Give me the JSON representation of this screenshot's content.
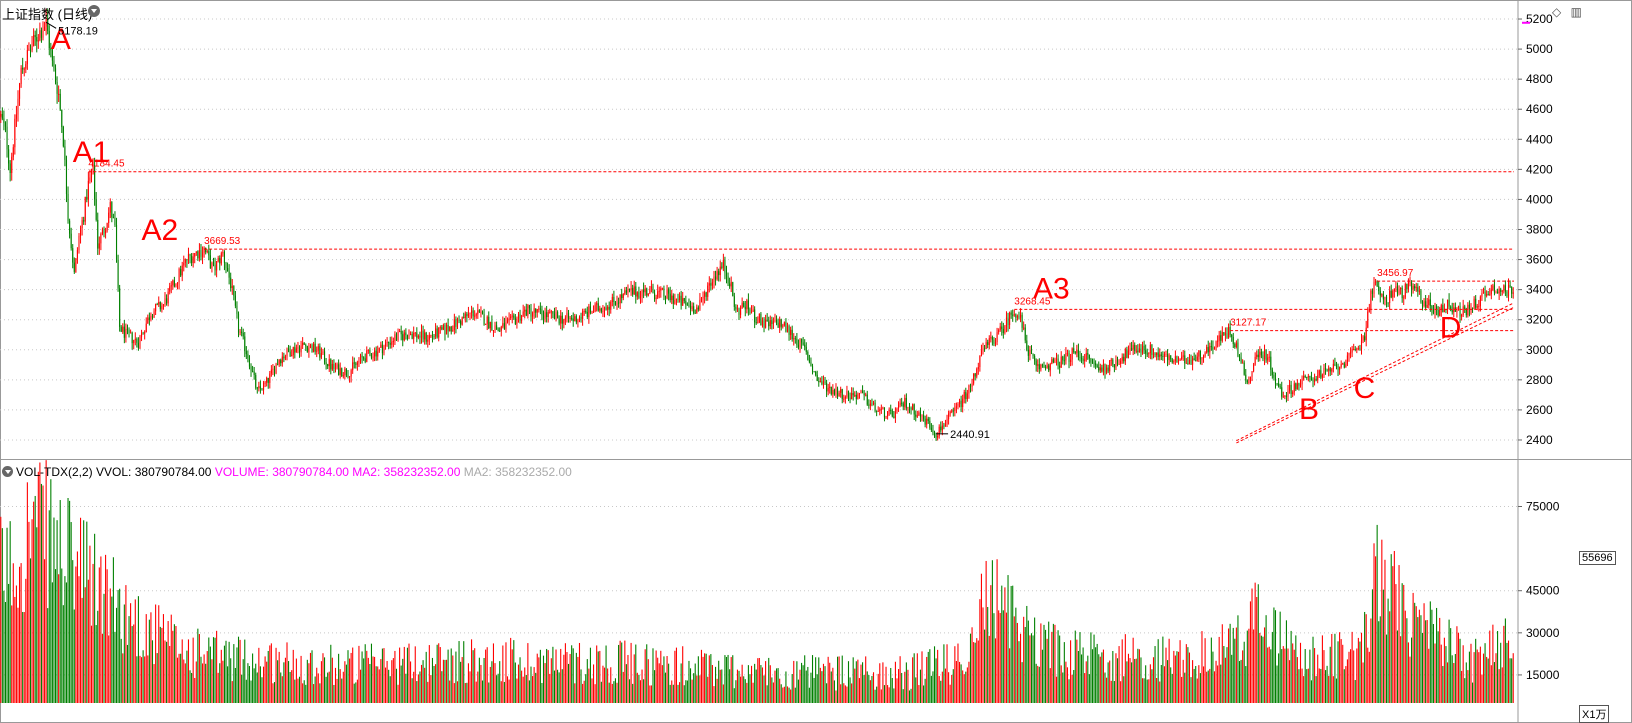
{
  "header": {
    "title": "上证指数 (日线)",
    "corner_icons": [
      "diamond-icon",
      "panel-toggle-icon"
    ]
  },
  "volume_header": {
    "indicator": "VOL-TDX(2,2)",
    "vvol_label": "VVOL:",
    "vvol_value": "380790784.00",
    "volume_label": "VOLUME:",
    "volume_value": "380790784.00",
    "ma2_label": "MA2:",
    "ma2_value": "358232352.00",
    "ma2b_label": "MA2:",
    "ma2b_value": "358232352.00"
  },
  "volume_current_box": "55696",
  "volume_unit_box": "X1万",
  "colors": {
    "up": "#ff0000",
    "down": "#008000",
    "annotation": "#ff0000",
    "grid": "#c8c8c8",
    "magenta": "#ff00ff"
  },
  "chart_data": [
    {
      "type": "candlestick",
      "title": "",
      "ylim": [
        2320,
        5260
      ],
      "y_ticks": [
        2400,
        2600,
        2800,
        3000,
        3200,
        3400,
        3600,
        3800,
        4000,
        4200,
        4400,
        4600,
        4800,
        5000,
        5200
      ],
      "grid": true,
      "y_axis_side": "right",
      "path_points": [
        {
          "i": 0,
          "v": 4550
        },
        {
          "i": 3,
          "v": 4450
        },
        {
          "i": 6,
          "v": 4200
        },
        {
          "i": 9,
          "v": 4480
        },
        {
          "i": 13,
          "v": 4850
        },
        {
          "i": 18,
          "v": 4980
        },
        {
          "i": 24,
          "v": 5100
        },
        {
          "i": 29,
          "v": 5178
        },
        {
          "i": 33,
          "v": 4900
        },
        {
          "i": 37,
          "v": 4700
        },
        {
          "i": 40,
          "v": 4400
        },
        {
          "i": 43,
          "v": 3900
        },
        {
          "i": 47,
          "v": 3500
        },
        {
          "i": 50,
          "v": 3750
        },
        {
          "i": 53,
          "v": 3900
        },
        {
          "i": 56,
          "v": 4100
        },
        {
          "i": 59,
          "v": 4184
        },
        {
          "i": 62,
          "v": 3700
        },
        {
          "i": 66,
          "v": 3800
        },
        {
          "i": 70,
          "v": 3950
        },
        {
          "i": 73,
          "v": 3800
        },
        {
          "i": 76,
          "v": 3150
        },
        {
          "i": 80,
          "v": 3100
        },
        {
          "i": 88,
          "v": 3050
        },
        {
          "i": 96,
          "v": 3250
        },
        {
          "i": 104,
          "v": 3300
        },
        {
          "i": 112,
          "v": 3460
        },
        {
          "i": 119,
          "v": 3600
        },
        {
          "i": 124,
          "v": 3640
        },
        {
          "i": 130,
          "v": 3669
        },
        {
          "i": 136,
          "v": 3530
        },
        {
          "i": 142,
          "v": 3640
        },
        {
          "i": 147,
          "v": 3440
        },
        {
          "i": 152,
          "v": 3140
        },
        {
          "i": 158,
          "v": 2960
        },
        {
          "i": 164,
          "v": 2720
        },
        {
          "i": 170,
          "v": 2780
        },
        {
          "i": 178,
          "v": 2940
        },
        {
          "i": 186,
          "v": 3000
        },
        {
          "i": 194,
          "v": 3030
        },
        {
          "i": 202,
          "v": 3000
        },
        {
          "i": 212,
          "v": 2880
        },
        {
          "i": 222,
          "v": 2850
        },
        {
          "i": 232,
          "v": 2950
        },
        {
          "i": 242,
          "v": 3000
        },
        {
          "i": 252,
          "v": 3080
        },
        {
          "i": 262,
          "v": 3110
        },
        {
          "i": 272,
          "v": 3080
        },
        {
          "i": 282,
          "v": 3120
        },
        {
          "i": 292,
          "v": 3180
        },
        {
          "i": 302,
          "v": 3250
        },
        {
          "i": 310,
          "v": 3200
        },
        {
          "i": 318,
          "v": 3130
        },
        {
          "i": 326,
          "v": 3180
        },
        {
          "i": 336,
          "v": 3260
        },
        {
          "i": 346,
          "v": 3240
        },
        {
          "i": 356,
          "v": 3210
        },
        {
          "i": 366,
          "v": 3200
        },
        {
          "i": 378,
          "v": 3260
        },
        {
          "i": 390,
          "v": 3310
        },
        {
          "i": 402,
          "v": 3380
        },
        {
          "i": 414,
          "v": 3390
        },
        {
          "i": 426,
          "v": 3360
        },
        {
          "i": 438,
          "v": 3300
        },
        {
          "i": 446,
          "v": 3270
        },
        {
          "i": 452,
          "v": 3420
        },
        {
          "i": 458,
          "v": 3520
        },
        {
          "i": 462,
          "v": 3560
        },
        {
          "i": 466,
          "v": 3460
        },
        {
          "i": 470,
          "v": 3250
        },
        {
          "i": 476,
          "v": 3300
        },
        {
          "i": 482,
          "v": 3220
        },
        {
          "i": 490,
          "v": 3160
        },
        {
          "i": 498,
          "v": 3180
        },
        {
          "i": 506,
          "v": 3100
        },
        {
          "i": 514,
          "v": 3000
        },
        {
          "i": 522,
          "v": 2800
        },
        {
          "i": 530,
          "v": 2740
        },
        {
          "i": 540,
          "v": 2700
        },
        {
          "i": 550,
          "v": 2700
        },
        {
          "i": 560,
          "v": 2600
        },
        {
          "i": 570,
          "v": 2560
        },
        {
          "i": 578,
          "v": 2650
        },
        {
          "i": 586,
          "v": 2580
        },
        {
          "i": 594,
          "v": 2500
        },
        {
          "i": 598,
          "v": 2441
        },
        {
          "i": 604,
          "v": 2520
        },
        {
          "i": 612,
          "v": 2620
        },
        {
          "i": 620,
          "v": 2750
        },
        {
          "i": 626,
          "v": 2950
        },
        {
          "i": 632,
          "v": 3050
        },
        {
          "i": 638,
          "v": 3100
        },
        {
          "i": 644,
          "v": 3200
        },
        {
          "i": 648,
          "v": 3268
        },
        {
          "i": 652,
          "v": 3200
        },
        {
          "i": 656,
          "v": 3020
        },
        {
          "i": 662,
          "v": 2880
        },
        {
          "i": 670,
          "v": 2900
        },
        {
          "i": 678,
          "v": 2920
        },
        {
          "i": 686,
          "v": 2980
        },
        {
          "i": 694,
          "v": 2950
        },
        {
          "i": 702,
          "v": 2870
        },
        {
          "i": 710,
          "v": 2900
        },
        {
          "i": 718,
          "v": 2960
        },
        {
          "i": 726,
          "v": 3010
        },
        {
          "i": 734,
          "v": 3000
        },
        {
          "i": 742,
          "v": 2960
        },
        {
          "i": 752,
          "v": 2920
        },
        {
          "i": 762,
          "v": 2940
        },
        {
          "i": 772,
          "v": 3000
        },
        {
          "i": 780,
          "v": 3080
        },
        {
          "i": 786,
          "v": 3127
        },
        {
          "i": 790,
          "v": 3020
        },
        {
          "i": 794,
          "v": 2880
        },
        {
          "i": 798,
          "v": 2780
        },
        {
          "i": 802,
          "v": 2950
        },
        {
          "i": 808,
          "v": 2980
        },
        {
          "i": 812,
          "v": 2900
        },
        {
          "i": 816,
          "v": 2760
        },
        {
          "i": 820,
          "v": 2700
        },
        {
          "i": 826,
          "v": 2750
        },
        {
          "i": 834,
          "v": 2800
        },
        {
          "i": 842,
          "v": 2830
        },
        {
          "i": 850,
          "v": 2860
        },
        {
          "i": 856,
          "v": 2900
        },
        {
          "i": 862,
          "v": 2940
        },
        {
          "i": 868,
          "v": 3020
        },
        {
          "i": 872,
          "v": 3100
        },
        {
          "i": 876,
          "v": 3380
        },
        {
          "i": 880,
          "v": 3440
        },
        {
          "i": 884,
          "v": 3300
        },
        {
          "i": 890,
          "v": 3400
        },
        {
          "i": 896,
          "v": 3380
        },
        {
          "i": 902,
          "v": 3420
        },
        {
          "i": 910,
          "v": 3320
        },
        {
          "i": 918,
          "v": 3260
        },
        {
          "i": 926,
          "v": 3300
        },
        {
          "i": 934,
          "v": 3240
        },
        {
          "i": 942,
          "v": 3300
        },
        {
          "i": 950,
          "v": 3380
        },
        {
          "i": 956,
          "v": 3420
        },
        {
          "i": 962,
          "v": 3380
        },
        {
          "i": 967,
          "v": 3420
        }
      ],
      "n_bars": 968,
      "max_label": "5178.19",
      "min_label": "2440.91",
      "price_labels": [
        {
          "text": "4184.45",
          "value": 4184.45,
          "i": 56
        },
        {
          "text": "3669.53",
          "value": 3669.53,
          "i": 130
        },
        {
          "text": "3268.45",
          "value": 3268.45,
          "i": 648
        },
        {
          "text": "3127.17",
          "value": 3127.17,
          "i": 786
        },
        {
          "text": "3456.97",
          "value": 3456.97,
          "i": 880
        }
      ],
      "point_annotations": [
        {
          "text": "A",
          "i": 32,
          "value": 5000
        },
        {
          "text": "A1",
          "i": 46,
          "value": 4250
        },
        {
          "text": "A2",
          "i": 90,
          "value": 3730
        },
        {
          "text": "A3",
          "i": 660,
          "value": 3340
        },
        {
          "text": "B",
          "i": 830,
          "value": 2540
        },
        {
          "text": "C",
          "i": 865,
          "value": 2680
        },
        {
          "text": "D",
          "i": 920,
          "value": 3080
        }
      ],
      "support_levels": [
        {
          "value": 4184.45,
          "from_i": 56
        },
        {
          "value": 3669.53,
          "from_i": 130
        },
        {
          "value": 3268.45,
          "from_i": 648
        },
        {
          "value": 3127.17,
          "from_i": 786
        },
        {
          "value": 3456.97,
          "from_i": 880
        }
      ],
      "trendlines": [
        {
          "from_i": 790,
          "from_v": 2395,
          "to_i": 967,
          "to_v": 3310
        },
        {
          "from_i": 790,
          "from_v": 2380,
          "to_i": 967,
          "to_v": 3280
        }
      ]
    },
    {
      "type": "bar",
      "title": "",
      "ylim": [
        5000,
        88000
      ],
      "y_ticks": [
        15000,
        30000,
        45000,
        75000
      ],
      "grid": true,
      "y_axis_side": "right",
      "volume_profile": [
        {
          "i": 0,
          "v": 55000
        },
        {
          "i": 10,
          "v": 60000
        },
        {
          "i": 20,
          "v": 75000
        },
        {
          "i": 30,
          "v": 70000
        },
        {
          "i": 40,
          "v": 62000
        },
        {
          "i": 55,
          "v": 55000
        },
        {
          "i": 70,
          "v": 45000
        },
        {
          "i": 90,
          "v": 35000
        },
        {
          "i": 120,
          "v": 25000
        },
        {
          "i": 160,
          "v": 22000
        },
        {
          "i": 220,
          "v": 20000
        },
        {
          "i": 300,
          "v": 22000
        },
        {
          "i": 400,
          "v": 21000
        },
        {
          "i": 500,
          "v": 17000
        },
        {
          "i": 580,
          "v": 17000
        },
        {
          "i": 615,
          "v": 22000
        },
        {
          "i": 630,
          "v": 48000
        },
        {
          "i": 650,
          "v": 36000
        },
        {
          "i": 680,
          "v": 24000
        },
        {
          "i": 760,
          "v": 22000
        },
        {
          "i": 790,
          "v": 28000
        },
        {
          "i": 805,
          "v": 40000
        },
        {
          "i": 830,
          "v": 22000
        },
        {
          "i": 870,
          "v": 24000
        },
        {
          "i": 880,
          "v": 55000
        },
        {
          "i": 900,
          "v": 38000
        },
        {
          "i": 940,
          "v": 22000
        },
        {
          "i": 967,
          "v": 30000
        }
      ]
    }
  ]
}
